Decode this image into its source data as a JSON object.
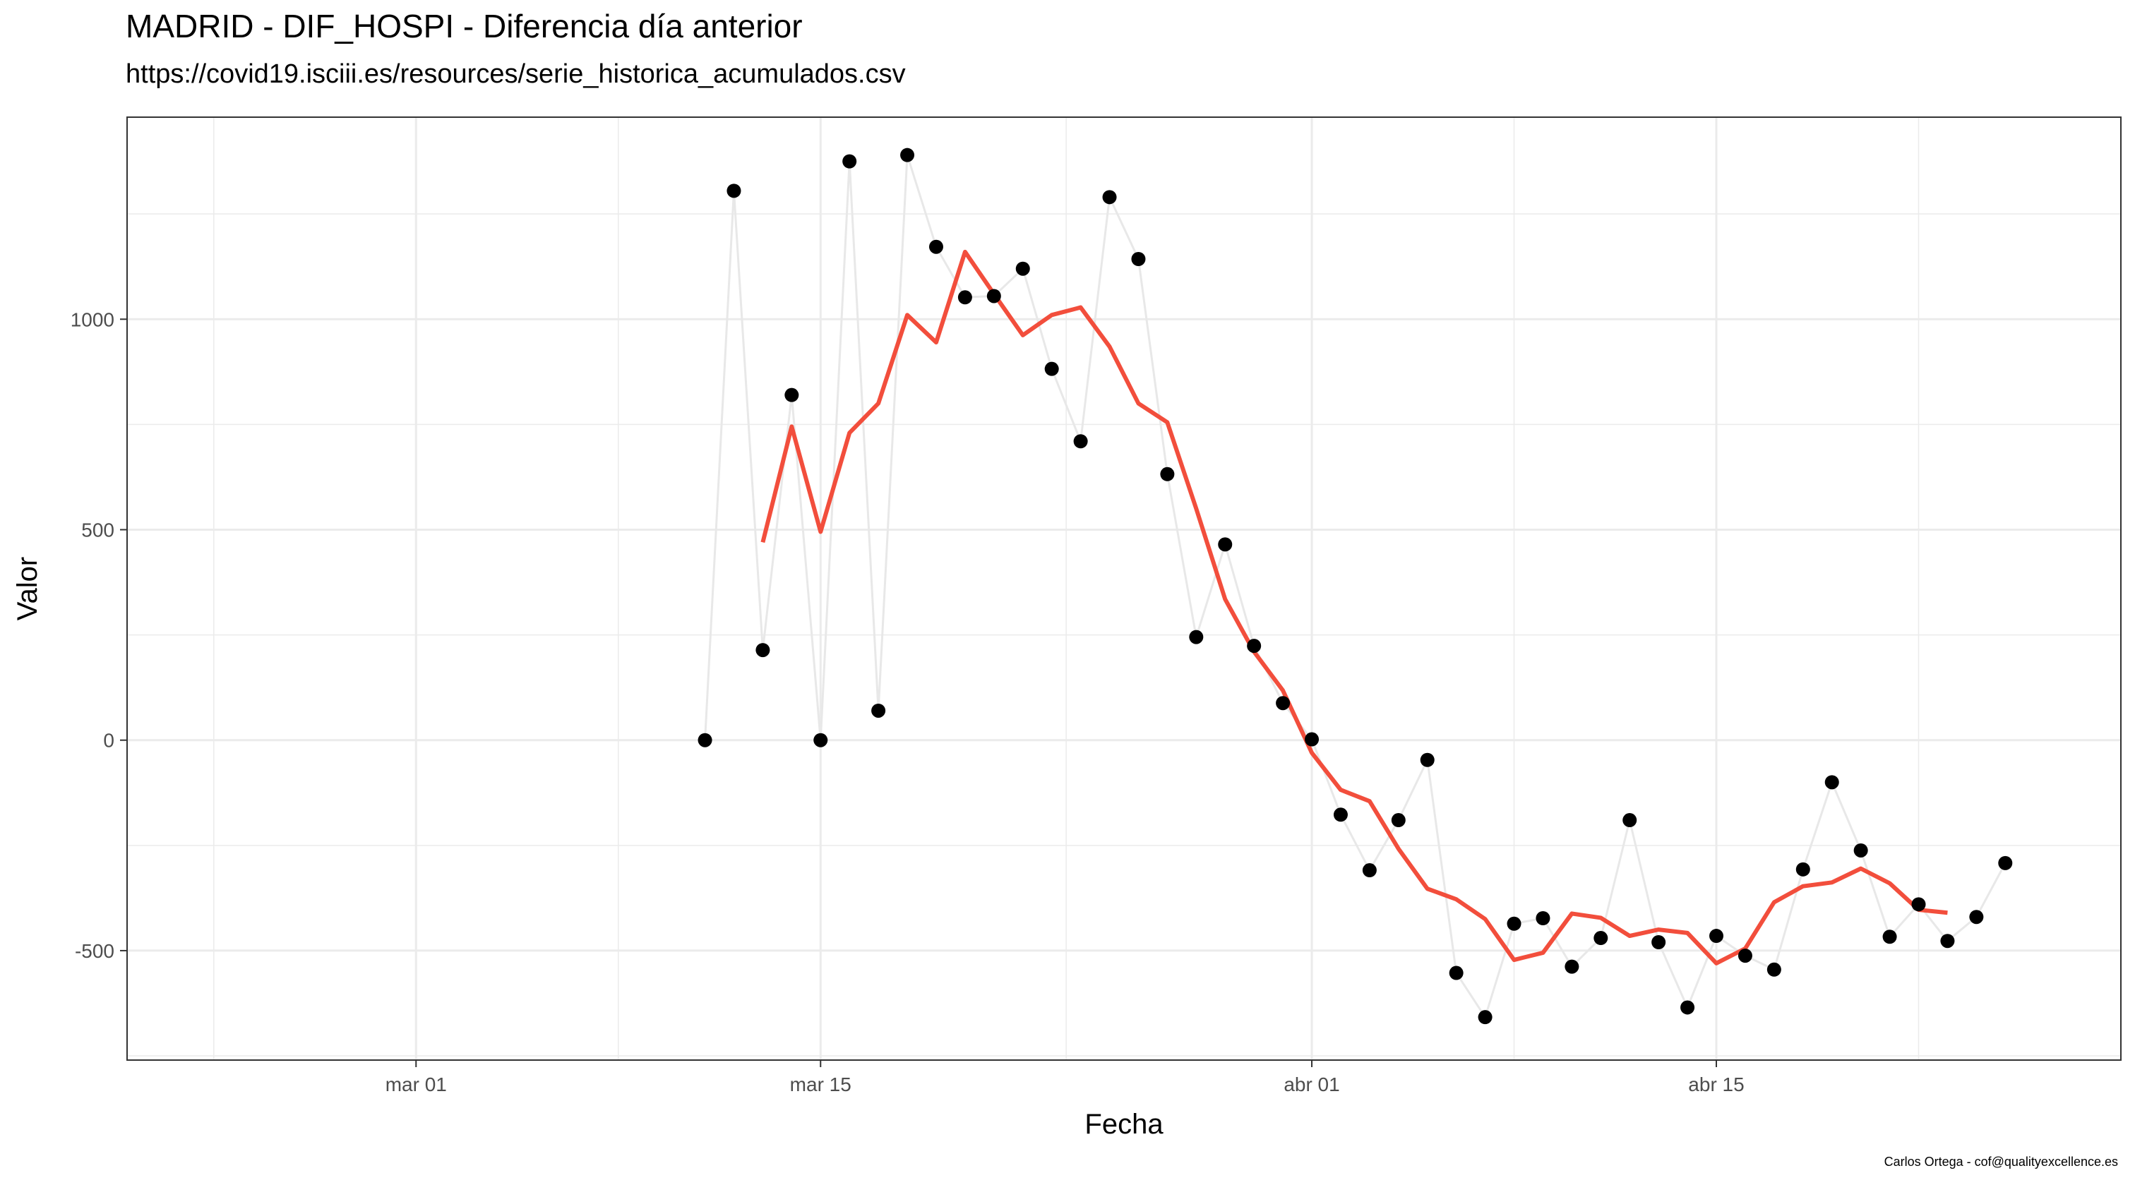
{
  "chart_data": {
    "type": "line",
    "title": "MADRID - DIF_HOSPI - Diferencia día anterior",
    "subtitle": "https://covid19.isciii.es/resources/serie_historica_acumulados.csv",
    "caption": "Carlos Ortega - cof@qualityexcellence.es",
    "xlabel": "Fecha",
    "ylabel": "Valor",
    "xlim": [
      "2020-02-20",
      "2020-04-29"
    ],
    "ylim": [
      -760,
      1480
    ],
    "x_ticks": [
      {
        "date": "2020-03-01",
        "label": "mar 01"
      },
      {
        "date": "2020-03-15",
        "label": "mar 15"
      },
      {
        "date": "2020-04-01",
        "label": "abr 01"
      },
      {
        "date": "2020-04-15",
        "label": "abr 15"
      }
    ],
    "y_ticks": [
      {
        "value": 1000,
        "label": "1000"
      },
      {
        "value": 500,
        "label": "500"
      },
      {
        "value": 0,
        "label": "0"
      },
      {
        "value": -500,
        "label": "-500"
      }
    ],
    "grid": true,
    "colors": {
      "points": "#000000",
      "raw_line": "#e8e8e8",
      "smooth_line": "#f24e3c",
      "grid": "#ebebeb",
      "panel_border": "#333333"
    },
    "series": [
      {
        "style": "points-with-line",
        "points": [
          {
            "x": "2020-03-11",
            "y": 0
          },
          {
            "x": "2020-03-12",
            "y": 1305
          },
          {
            "x": "2020-03-13",
            "y": 214
          },
          {
            "x": "2020-03-14",
            "y": 820
          },
          {
            "x": "2020-03-15",
            "y": 0
          },
          {
            "x": "2020-03-16",
            "y": 1375
          },
          {
            "x": "2020-03-17",
            "y": 70
          },
          {
            "x": "2020-03-18",
            "y": 1390
          },
          {
            "x": "2020-03-19",
            "y": 1172
          },
          {
            "x": "2020-03-20",
            "y": 1052
          },
          {
            "x": "2020-03-21",
            "y": 1055
          },
          {
            "x": "2020-03-22",
            "y": 1120
          },
          {
            "x": "2020-03-23",
            "y": 882
          },
          {
            "x": "2020-03-24",
            "y": 710
          },
          {
            "x": "2020-03-25",
            "y": 1290
          },
          {
            "x": "2020-03-26",
            "y": 1143
          },
          {
            "x": "2020-03-27",
            "y": 632
          },
          {
            "x": "2020-03-28",
            "y": 245
          },
          {
            "x": "2020-03-29",
            "y": 465
          },
          {
            "x": "2020-03-30",
            "y": 224
          },
          {
            "x": "2020-03-31",
            "y": 88
          },
          {
            "x": "2020-04-01",
            "y": 2
          },
          {
            "x": "2020-04-02",
            "y": -177
          },
          {
            "x": "2020-04-03",
            "y": -309
          },
          {
            "x": "2020-04-04",
            "y": -190
          },
          {
            "x": "2020-04-05",
            "y": -47
          },
          {
            "x": "2020-04-06",
            "y": -553
          },
          {
            "x": "2020-04-07",
            "y": -658
          },
          {
            "x": "2020-04-08",
            "y": -436
          },
          {
            "x": "2020-04-09",
            "y": -423
          },
          {
            "x": "2020-04-10",
            "y": -538
          },
          {
            "x": "2020-04-11",
            "y": -470
          },
          {
            "x": "2020-04-12",
            "y": -190
          },
          {
            "x": "2020-04-13",
            "y": -480
          },
          {
            "x": "2020-04-14",
            "y": -635
          },
          {
            "x": "2020-04-15",
            "y": -465
          },
          {
            "x": "2020-04-16",
            "y": -512
          },
          {
            "x": "2020-04-17",
            "y": -545
          },
          {
            "x": "2020-04-18",
            "y": -307
          },
          {
            "x": "2020-04-19",
            "y": -100
          },
          {
            "x": "2020-04-20",
            "y": -262
          },
          {
            "x": "2020-04-21",
            "y": -467
          },
          {
            "x": "2020-04-22",
            "y": -390
          },
          {
            "x": "2020-04-23",
            "y": -477
          },
          {
            "x": "2020-04-24",
            "y": -420
          },
          {
            "x": "2020-04-25",
            "y": -292
          }
        ]
      },
      {
        "style": "smooth-line",
        "points": [
          {
            "x": "2020-03-13",
            "y": 470
          },
          {
            "x": "2020-03-14",
            "y": 745
          },
          {
            "x": "2020-03-15",
            "y": 495
          },
          {
            "x": "2020-03-16",
            "y": 730
          },
          {
            "x": "2020-03-17",
            "y": 800
          },
          {
            "x": "2020-03-18",
            "y": 1010
          },
          {
            "x": "2020-03-19",
            "y": 945
          },
          {
            "x": "2020-03-20",
            "y": 1160
          },
          {
            "x": "2020-03-21",
            "y": 1060
          },
          {
            "x": "2020-03-22",
            "y": 962
          },
          {
            "x": "2020-03-23",
            "y": 1010
          },
          {
            "x": "2020-03-24",
            "y": 1028
          },
          {
            "x": "2020-03-25",
            "y": 935
          },
          {
            "x": "2020-03-26",
            "y": 800
          },
          {
            "x": "2020-03-27",
            "y": 755
          },
          {
            "x": "2020-03-28",
            "y": 550
          },
          {
            "x": "2020-03-29",
            "y": 335
          },
          {
            "x": "2020-03-30",
            "y": 210
          },
          {
            "x": "2020-03-31",
            "y": 118
          },
          {
            "x": "2020-04-01",
            "y": -30
          },
          {
            "x": "2020-04-02",
            "y": -118
          },
          {
            "x": "2020-04-03",
            "y": -145
          },
          {
            "x": "2020-04-04",
            "y": -258
          },
          {
            "x": "2020-04-05",
            "y": -353
          },
          {
            "x": "2020-04-06",
            "y": -378
          },
          {
            "x": "2020-04-07",
            "y": -425
          },
          {
            "x": "2020-04-08",
            "y": -522
          },
          {
            "x": "2020-04-09",
            "y": -505
          },
          {
            "x": "2020-04-10",
            "y": -412
          },
          {
            "x": "2020-04-11",
            "y": -422
          },
          {
            "x": "2020-04-12",
            "y": -465
          },
          {
            "x": "2020-04-13",
            "y": -450
          },
          {
            "x": "2020-04-14",
            "y": -458
          },
          {
            "x": "2020-04-15",
            "y": -530
          },
          {
            "x": "2020-04-16",
            "y": -495
          },
          {
            "x": "2020-04-17",
            "y": -385
          },
          {
            "x": "2020-04-18",
            "y": -347
          },
          {
            "x": "2020-04-19",
            "y": -338
          },
          {
            "x": "2020-04-20",
            "y": -305
          },
          {
            "x": "2020-04-21",
            "y": -340
          },
          {
            "x": "2020-04-22",
            "y": -403
          },
          {
            "x": "2020-04-23",
            "y": -410
          }
        ]
      }
    ]
  }
}
